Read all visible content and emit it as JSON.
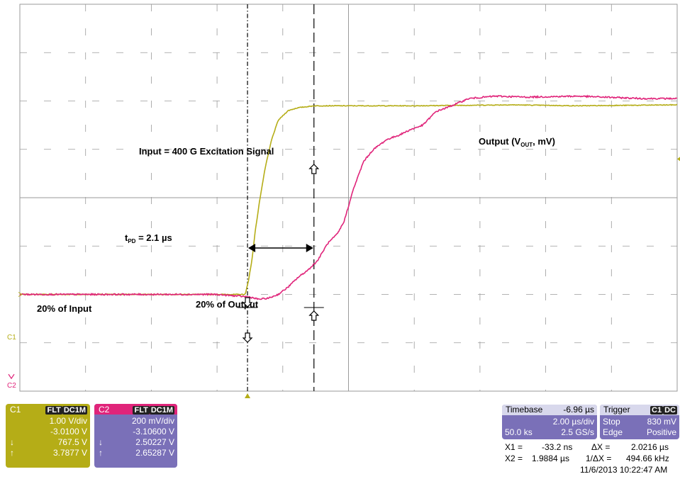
{
  "colors": {
    "ch1": "#b5ad17",
    "ch2": "#e0247a",
    "panel": "#7a70b8",
    "grid": "#9a9a9a"
  },
  "chart_data": {
    "type": "line",
    "title": "",
    "xlabel": "",
    "ylabel": "",
    "x_unit": "µs",
    "xlim": [
      -6.96,
      13.04
    ],
    "grid": true,
    "divisions": {
      "x": 10,
      "y": 8
    },
    "series": [
      {
        "name": "Input = 400 G Excitation Signal",
        "channel": "C1",
        "x": [
          -6.96,
          -6.0,
          -4.0,
          -2.0,
          -0.4,
          -0.1,
          0.0,
          0.1,
          0.2,
          0.35,
          0.5,
          0.7,
          0.9,
          1.2,
          1.5,
          2.0,
          3.0,
          5.0,
          8.0,
          10.0,
          13.04
        ],
        "y_div": [
          -2.0,
          -2.0,
          -2.0,
          -2.0,
          -2.0,
          -2.0,
          -1.7,
          -1.3,
          -0.7,
          0.0,
          0.6,
          1.2,
          1.6,
          1.8,
          1.86,
          1.9,
          1.9,
          1.9,
          1.92,
          1.9,
          1.92
        ]
      },
      {
        "name": "Output (V_OUT, mV)",
        "channel": "C2",
        "x": [
          -6.96,
          -4.0,
          -1.0,
          0.0,
          0.3,
          0.6,
          0.9,
          1.2,
          1.5,
          1.8,
          2.1,
          2.4,
          2.7,
          2.9,
          3.2,
          3.5,
          3.8,
          4.2,
          4.6,
          4.9,
          5.3,
          5.7,
          6.1,
          6.7,
          7.5,
          8.5,
          10.0,
          12.0,
          13.04
        ],
        "y_div": [
          -2.0,
          -2.0,
          -2.0,
          -2.05,
          -2.1,
          -2.08,
          -2.0,
          -1.85,
          -1.65,
          -1.5,
          -1.3,
          -0.95,
          -0.75,
          -0.5,
          0.2,
          0.75,
          1.0,
          1.2,
          1.3,
          1.4,
          1.5,
          1.78,
          1.88,
          2.05,
          2.1,
          2.08,
          2.1,
          2.05,
          2.05
        ]
      }
    ],
    "cursors": {
      "x1_us": -0.0332,
      "x2_us": 1.9884
    },
    "annotations": {
      "input_label": "Input = 400 G Excitation Signal",
      "output_label": "Output (V",
      "output_sub": "OUT",
      "output_tail": ", mV)",
      "tpd_t": "t",
      "tpd_sub": "PD",
      "tpd_value": " = 2.1 µs",
      "pct_input": "20% of Input",
      "pct_output": "20% of Output",
      "c1_marker": "C1",
      "c2_marker": "C2"
    }
  },
  "c1": {
    "name": "C1",
    "tag1": "FLT",
    "tag2": "DC1M",
    "vdiv": "1.00 V/div",
    "offset": "-3.0100 V",
    "cur1_sym": "↓",
    "cur1": "767.5 V",
    "cur2_sym": "↑",
    "cur2": "3.7877 V"
  },
  "c2": {
    "name": "C2",
    "tag1": "FLT",
    "tag2": "DC1M",
    "vdiv": "200 mV/div",
    "offset": "-3.10600 V",
    "cur1_sym": "↓",
    "cur1": "2.50227 V",
    "cur2_sym": "↑",
    "cur2": "2.65287 V"
  },
  "timebase": {
    "label": "Timebase",
    "delay": "-6.96 µs",
    "tdiv": "2.00 µs/div",
    "samples": "50.0 ks",
    "rate": "2.5 GS/s"
  },
  "trigger": {
    "label": "Trigger",
    "tag1": "C1",
    "tag2": "DC",
    "mode": "Stop",
    "level": "830 mV",
    "type": "Edge",
    "slope": "Positive"
  },
  "measure": {
    "x1_label": "X1 =",
    "x1": "-33.2 ns",
    "dx_label": "ΔX =",
    "dx": "2.0216 µs",
    "x2_label": "X2 =",
    "x2": "1.9884 µs",
    "inv_label": "1/ΔX =",
    "inv": "494.66 kHz",
    "timestamp": "11/6/2013  10:22:47  AM"
  }
}
